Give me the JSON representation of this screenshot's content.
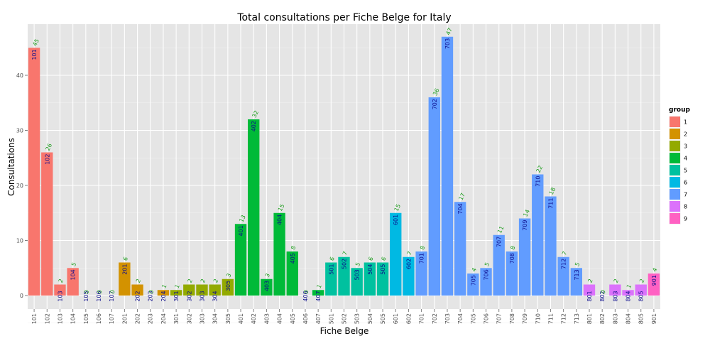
{
  "chart_data": {
    "type": "bar",
    "title": "Total consultations per Fiche Belge for Italy",
    "xlabel": "Fiche Belge",
    "ylabel": "Consultations",
    "ylim": [
      0,
      49
    ],
    "yticks": [
      0,
      10,
      20,
      30,
      40
    ],
    "grid": true,
    "legend_title": "group",
    "legend_position": "right",
    "groups": [
      {
        "name": "1",
        "color": "#F8766D"
      },
      {
        "name": "2",
        "color": "#D39200"
      },
      {
        "name": "3",
        "color": "#93AA00"
      },
      {
        "name": "4",
        "color": "#00BA38"
      },
      {
        "name": "5",
        "color": "#00C19F"
      },
      {
        "name": "6",
        "color": "#00B9E3"
      },
      {
        "name": "7",
        "color": "#619CFF"
      },
      {
        "name": "8",
        "color": "#DB72FB"
      },
      {
        "name": "9",
        "color": "#FF61C3"
      }
    ],
    "bars": [
      {
        "category": "101",
        "value": 45,
        "group": "1"
      },
      {
        "category": "102",
        "value": 26,
        "group": "1"
      },
      {
        "category": "103",
        "value": 2,
        "group": "1"
      },
      {
        "category": "104",
        "value": 5,
        "group": "1"
      },
      {
        "category": "105",
        "value": 0,
        "group": "1"
      },
      {
        "category": "106",
        "value": 0,
        "group": "1"
      },
      {
        "category": "107",
        "value": 0,
        "group": "1"
      },
      {
        "category": "201",
        "value": 6,
        "group": "2"
      },
      {
        "category": "202",
        "value": 2,
        "group": "2"
      },
      {
        "category": "203",
        "value": 0,
        "group": "2"
      },
      {
        "category": "204",
        "value": 1,
        "group": "2"
      },
      {
        "category": "301",
        "value": 1,
        "group": "3"
      },
      {
        "category": "302",
        "value": 2,
        "group": "3"
      },
      {
        "category": "303",
        "value": 2,
        "group": "3"
      },
      {
        "category": "304",
        "value": 2,
        "group": "3"
      },
      {
        "category": "305",
        "value": 3,
        "group": "3"
      },
      {
        "category": "401",
        "value": 13,
        "group": "4"
      },
      {
        "category": "402",
        "value": 32,
        "group": "4"
      },
      {
        "category": "403",
        "value": 3,
        "group": "4"
      },
      {
        "category": "404",
        "value": 15,
        "group": "4"
      },
      {
        "category": "405",
        "value": 8,
        "group": "4"
      },
      {
        "category": "406",
        "value": 0,
        "group": "4"
      },
      {
        "category": "407",
        "value": 1,
        "group": "4"
      },
      {
        "category": "501",
        "value": 6,
        "group": "5"
      },
      {
        "category": "502",
        "value": 7,
        "group": "5"
      },
      {
        "category": "503",
        "value": 5,
        "group": "5"
      },
      {
        "category": "504",
        "value": 6,
        "group": "5"
      },
      {
        "category": "505",
        "value": 6,
        "group": "5"
      },
      {
        "category": "601",
        "value": 15,
        "group": "6"
      },
      {
        "category": "602",
        "value": 7,
        "group": "6"
      },
      {
        "category": "701",
        "value": 8,
        "group": "7"
      },
      {
        "category": "702",
        "value": 36,
        "group": "7"
      },
      {
        "category": "703",
        "value": 47,
        "group": "7"
      },
      {
        "category": "704",
        "value": 17,
        "group": "7"
      },
      {
        "category": "705",
        "value": 4,
        "group": "7"
      },
      {
        "category": "706",
        "value": 5,
        "group": "7"
      },
      {
        "category": "707",
        "value": 11,
        "group": "7"
      },
      {
        "category": "708",
        "value": 8,
        "group": "7"
      },
      {
        "category": "709",
        "value": 14,
        "group": "7"
      },
      {
        "category": "710",
        "value": 22,
        "group": "7"
      },
      {
        "category": "711",
        "value": 18,
        "group": "7"
      },
      {
        "category": "712",
        "value": 7,
        "group": "7"
      },
      {
        "category": "713",
        "value": 5,
        "group": "7"
      },
      {
        "category": "801",
        "value": 2,
        "group": "8"
      },
      {
        "category": "802",
        "value": 0,
        "group": "8"
      },
      {
        "category": "803",
        "value": 2,
        "group": "8"
      },
      {
        "category": "804",
        "value": 1,
        "group": "8"
      },
      {
        "category": "805",
        "value": 2,
        "group": "8"
      },
      {
        "category": "901",
        "value": 4,
        "group": "9"
      }
    ]
  }
}
